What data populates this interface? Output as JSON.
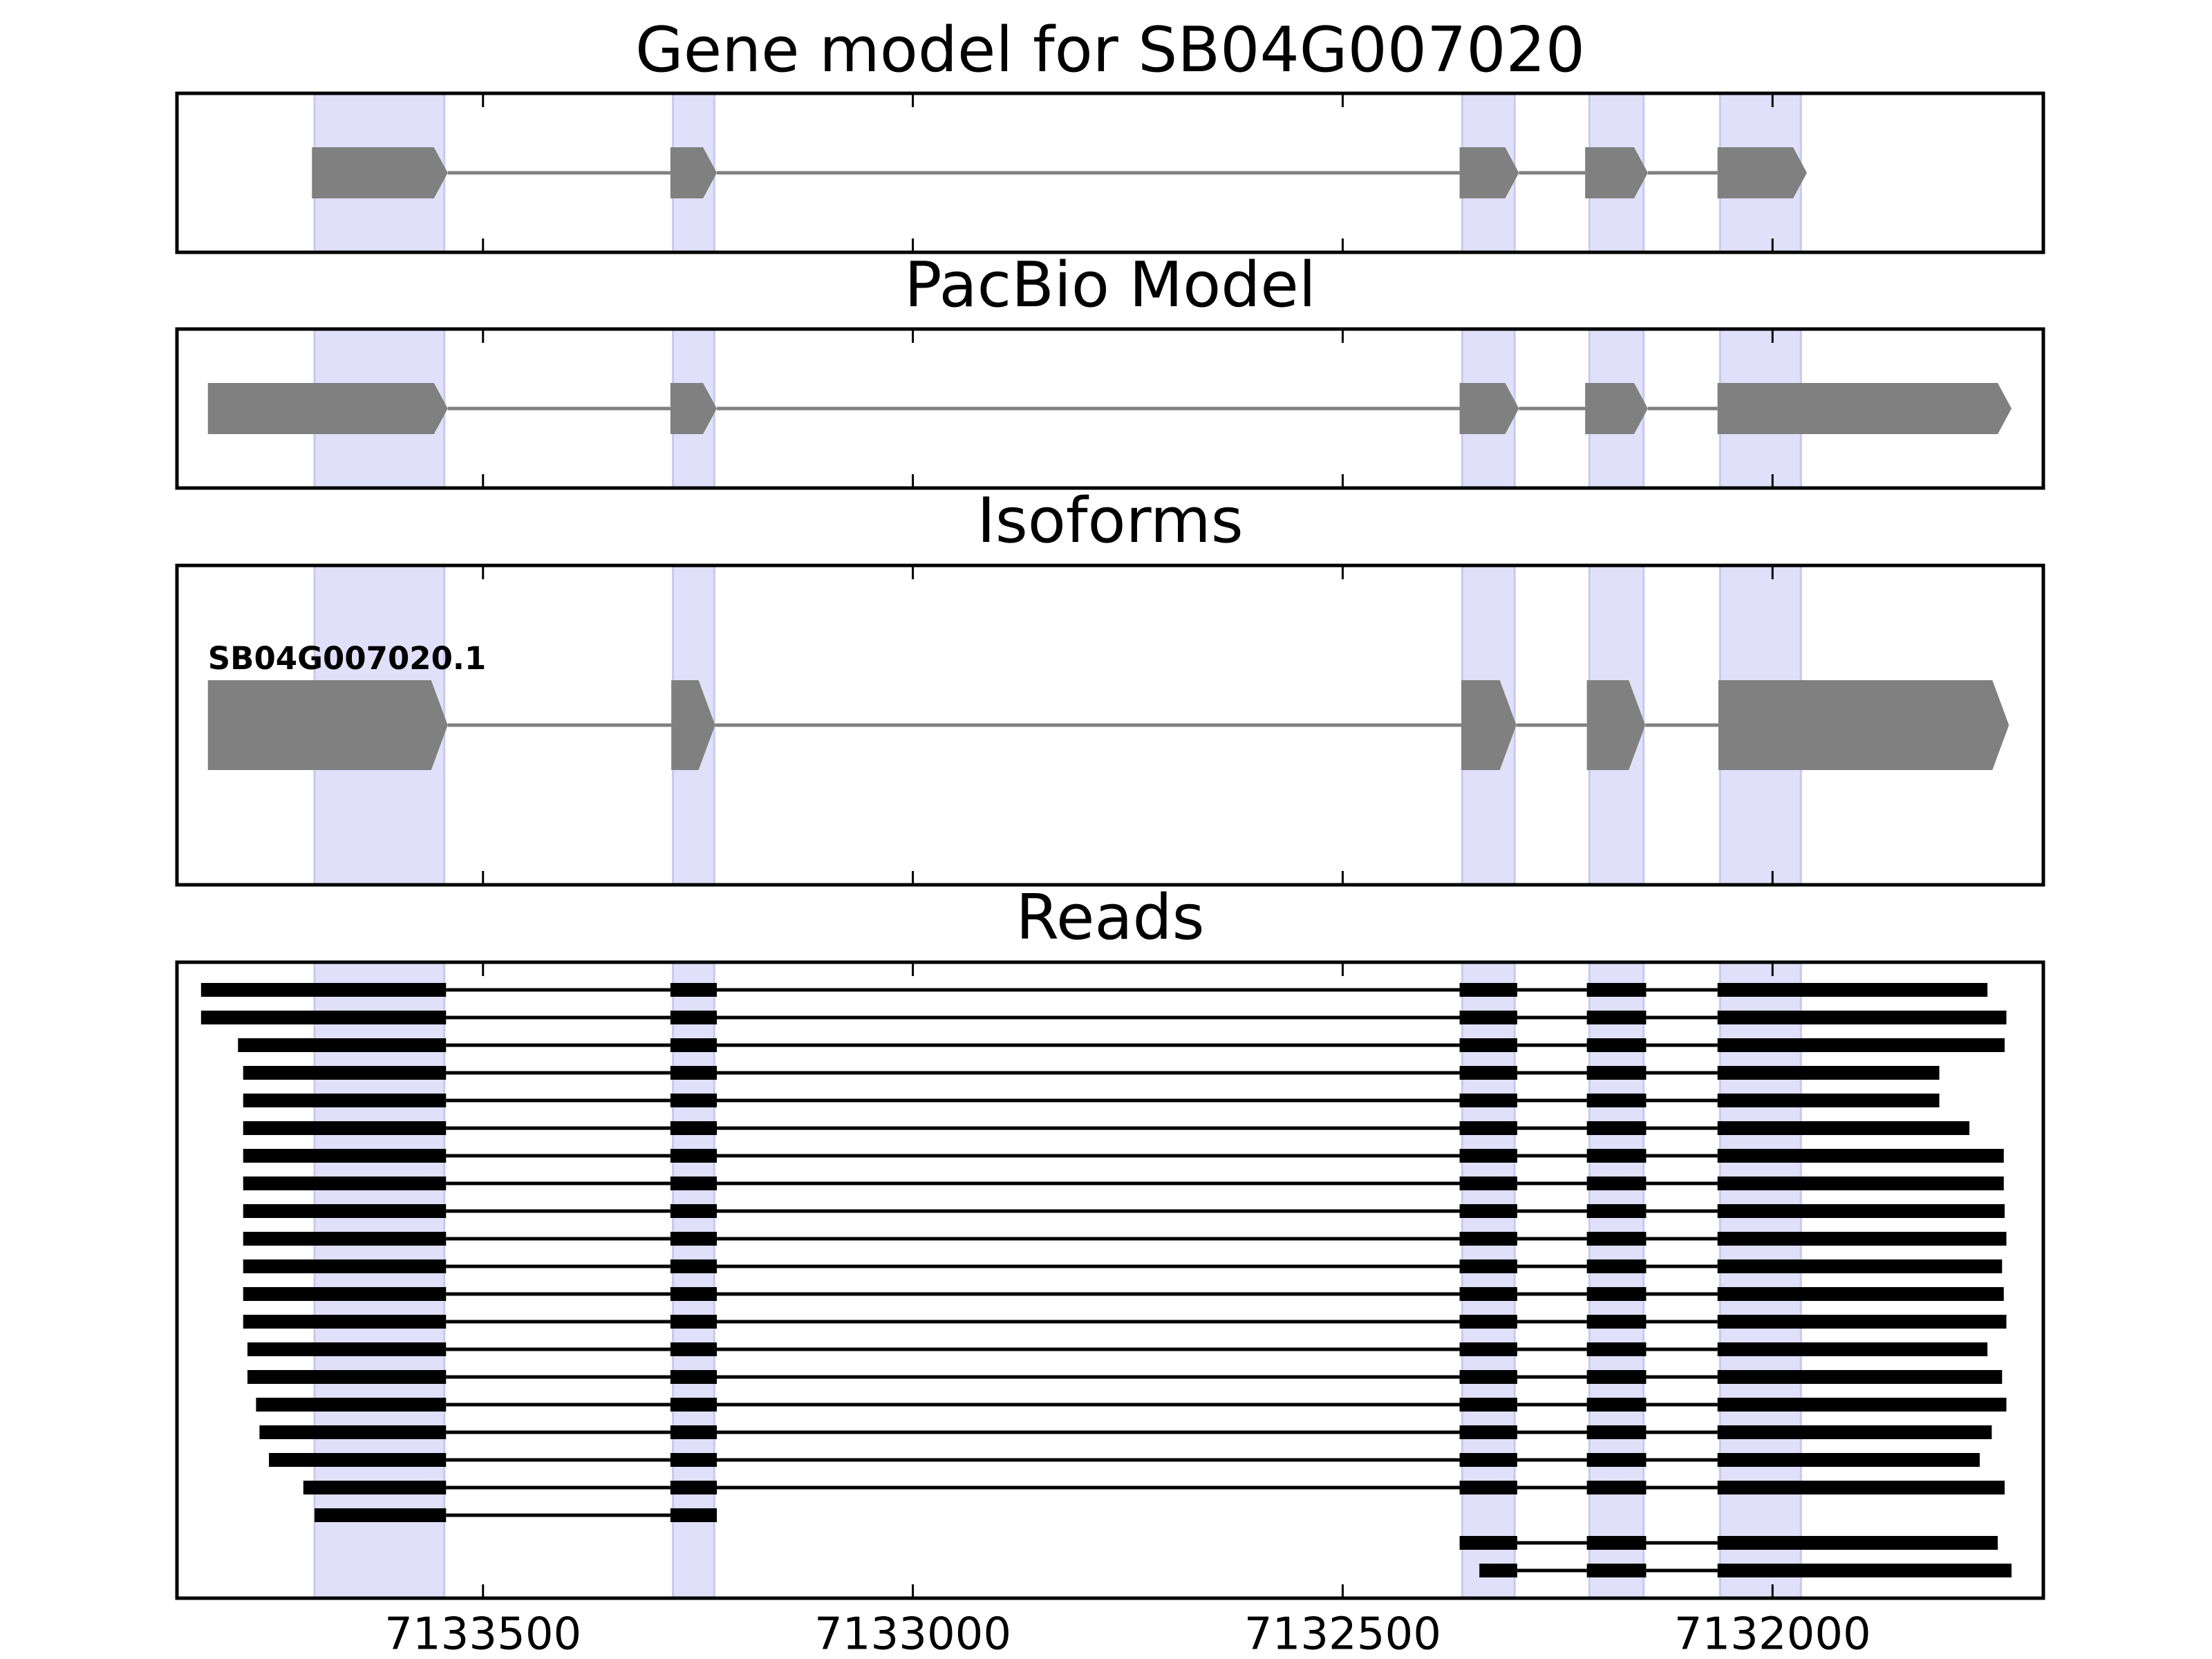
{
  "chart_data": {
    "type": "gene_tracks",
    "xlim": [
      7133856,
      7131685
    ],
    "xticks": [
      7133500,
      7133000,
      7132500,
      7132000
    ],
    "highlight_color": "#e0e0fa",
    "highlights": [
      [
        7133696,
        7133545
      ],
      [
        7133279,
        7133231
      ],
      [
        7132361,
        7132300
      ],
      [
        7132213,
        7132150
      ],
      [
        7132061,
        7131967
      ]
    ],
    "panels": [
      {
        "title": "Gene model for SB04G007020",
        "shape": "arrow",
        "color": "#808080",
        "transcripts": [
          {
            "exons": [
              [
                7133699,
                7133541
              ],
              [
                7133282,
                7133228
              ],
              [
                7132364,
                7132295
              ],
              [
                7132218,
                7132145
              ],
              [
                7132064,
                7131960
              ]
            ]
          }
        ]
      },
      {
        "title": "PacBio Model",
        "shape": "arrow",
        "color": "#808080",
        "transcripts": [
          {
            "exons": [
              [
                7133820,
                7133541
              ],
              [
                7133282,
                7133228
              ],
              [
                7132364,
                7132295
              ],
              [
                7132218,
                7132145
              ],
              [
                7132064,
                7131722
              ]
            ]
          }
        ]
      },
      {
        "title": "Isoforms",
        "shape": "arrow",
        "color": "#808080",
        "transcripts": [
          {
            "label": "SB04G007020.1",
            "exons": [
              [
                7133820,
                7133541
              ],
              [
                7133281,
                7133230
              ],
              [
                7132362,
                7132298
              ],
              [
                7132216,
                7132148
              ],
              [
                7132063,
                7131725
              ]
            ]
          }
        ]
      },
      {
        "title": "Reads",
        "shape": "bar",
        "color": "#000000",
        "transcripts": [
          {
            "exons": [
              [
                7133828,
                7133543
              ],
              [
                7133282,
                7133228
              ],
              [
                7132364,
                7132297
              ],
              [
                7132216,
                7132147
              ],
              [
                7132064,
                7131750
              ]
            ]
          },
          {
            "exons": [
              [
                7133828,
                7133543
              ],
              [
                7133282,
                7133228
              ],
              [
                7132364,
                7132297
              ],
              [
                7132216,
                7132147
              ],
              [
                7132064,
                7131728
              ]
            ]
          },
          {
            "exons": [
              [
                7133785,
                7133543
              ],
              [
                7133282,
                7133228
              ],
              [
                7132364,
                7132297
              ],
              [
                7132216,
                7132147
              ],
              [
                7132064,
                7131730
              ]
            ]
          },
          {
            "exons": [
              [
                7133779,
                7133543
              ],
              [
                7133282,
                7133228
              ],
              [
                7132364,
                7132297
              ],
              [
                7132216,
                7132147
              ],
              [
                7132064,
                7131806
              ]
            ]
          },
          {
            "exons": [
              [
                7133779,
                7133543
              ],
              [
                7133282,
                7133228
              ],
              [
                7132364,
                7132297
              ],
              [
                7132216,
                7132147
              ],
              [
                7132064,
                7131806
              ]
            ]
          },
          {
            "exons": [
              [
                7133779,
                7133543
              ],
              [
                7133282,
                7133228
              ],
              [
                7132364,
                7132297
              ],
              [
                7132216,
                7132147
              ],
              [
                7132064,
                7131771
              ]
            ]
          },
          {
            "exons": [
              [
                7133779,
                7133543
              ],
              [
                7133282,
                7133228
              ],
              [
                7132364,
                7132297
              ],
              [
                7132216,
                7132147
              ],
              [
                7132064,
                7131731
              ]
            ]
          },
          {
            "exons": [
              [
                7133779,
                7133543
              ],
              [
                7133282,
                7133228
              ],
              [
                7132364,
                7132297
              ],
              [
                7132216,
                7132147
              ],
              [
                7132064,
                7131731
              ]
            ]
          },
          {
            "exons": [
              [
                7133779,
                7133543
              ],
              [
                7133282,
                7133228
              ],
              [
                7132364,
                7132297
              ],
              [
                7132216,
                7132147
              ],
              [
                7132064,
                7131730
              ]
            ]
          },
          {
            "exons": [
              [
                7133779,
                7133543
              ],
              [
                7133282,
                7133228
              ],
              [
                7132364,
                7132297
              ],
              [
                7132216,
                7132147
              ],
              [
                7132064,
                7131728
              ]
            ]
          },
          {
            "exons": [
              [
                7133779,
                7133543
              ],
              [
                7133282,
                7133228
              ],
              [
                7132364,
                7132297
              ],
              [
                7132216,
                7132147
              ],
              [
                7132064,
                7131733
              ]
            ]
          },
          {
            "exons": [
              [
                7133779,
                7133543
              ],
              [
                7133282,
                7133228
              ],
              [
                7132364,
                7132297
              ],
              [
                7132216,
                7132147
              ],
              [
                7132064,
                7131731
              ]
            ]
          },
          {
            "exons": [
              [
                7133779,
                7133543
              ],
              [
                7133282,
                7133228
              ],
              [
                7132364,
                7132297
              ],
              [
                7132216,
                7132147
              ],
              [
                7132064,
                7131728
              ]
            ]
          },
          {
            "exons": [
              [
                7133774,
                7133543
              ],
              [
                7133282,
                7133228
              ],
              [
                7132364,
                7132297
              ],
              [
                7132216,
                7132147
              ],
              [
                7132064,
                7131750
              ]
            ]
          },
          {
            "exons": [
              [
                7133774,
                7133543
              ],
              [
                7133282,
                7133228
              ],
              [
                7132364,
                7132297
              ],
              [
                7132216,
                7132147
              ],
              [
                7132064,
                7131733
              ]
            ]
          },
          {
            "exons": [
              [
                7133764,
                7133543
              ],
              [
                7133282,
                7133228
              ],
              [
                7132364,
                7132297
              ],
              [
                7132216,
                7132147
              ],
              [
                7132064,
                7131728
              ]
            ]
          },
          {
            "exons": [
              [
                7133760,
                7133543
              ],
              [
                7133282,
                7133228
              ],
              [
                7132364,
                7132297
              ],
              [
                7132216,
                7132147
              ],
              [
                7132064,
                7131745
              ]
            ]
          },
          {
            "exons": [
              [
                7133749,
                7133543
              ],
              [
                7133282,
                7133228
              ],
              [
                7132364,
                7132297
              ],
              [
                7132216,
                7132147
              ],
              [
                7132064,
                7131759
              ]
            ]
          },
          {
            "exons": [
              [
                7133709,
                7133543
              ],
              [
                7133282,
                7133228
              ],
              [
                7132364,
                7132297
              ],
              [
                7132216,
                7132147
              ],
              [
                7132064,
                7131730
              ]
            ]
          },
          {
            "exons": [
              [
                7133696,
                7133543
              ],
              [
                7133282,
                7133228
              ]
            ]
          },
          {
            "exons": [
              [
                7132364,
                7132297
              ],
              [
                7132216,
                7132147
              ],
              [
                7132064,
                7131738
              ]
            ]
          },
          {
            "exons": [
              [
                7132341,
                7132297
              ],
              [
                7132216,
                7132147
              ],
              [
                7132064,
                7131722
              ]
            ]
          }
        ]
      }
    ]
  }
}
